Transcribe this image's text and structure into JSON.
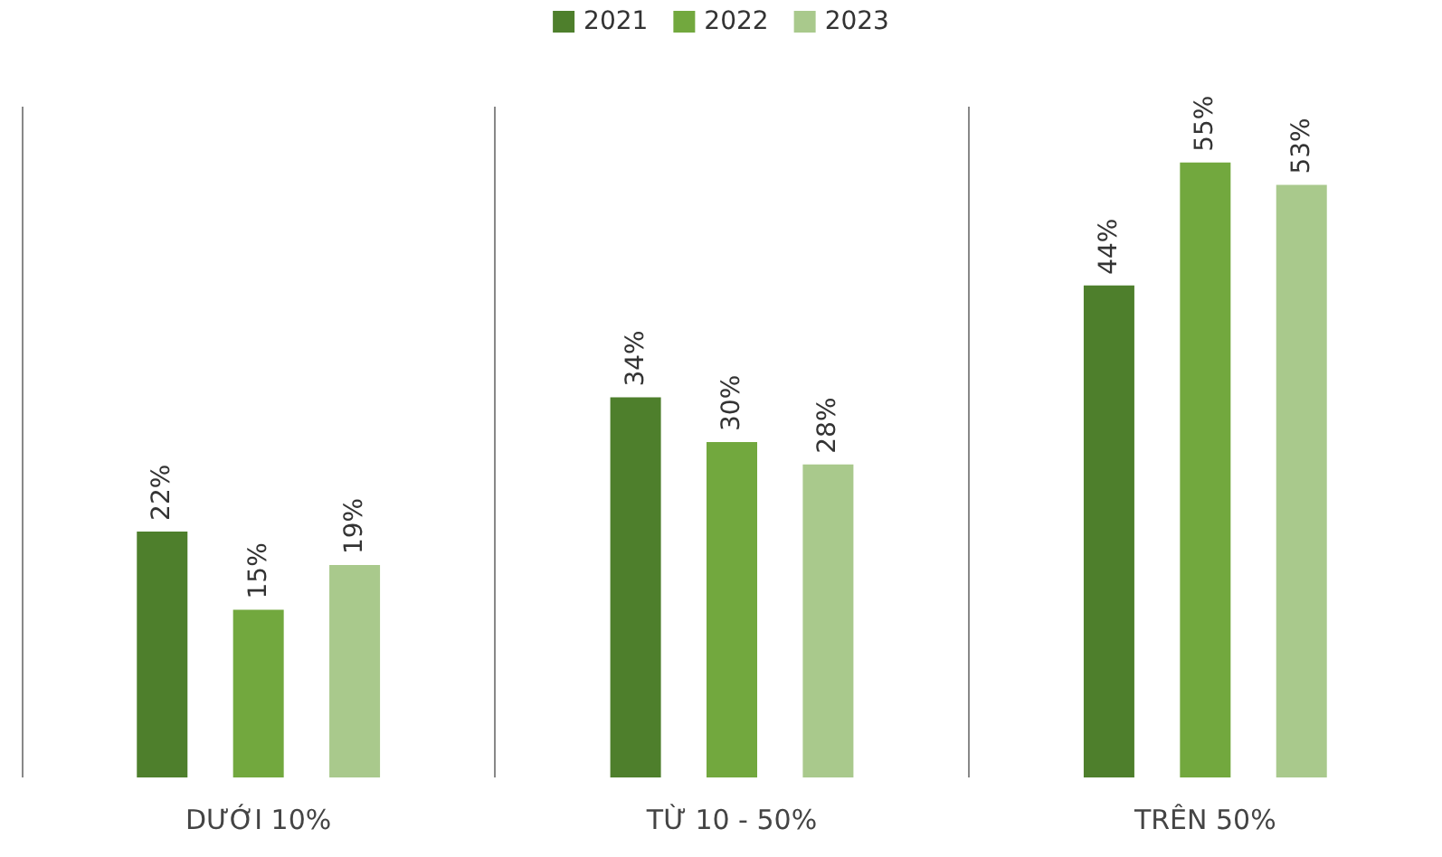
{
  "chart_data": {
    "type": "bar",
    "categories": [
      "DƯỚI 10%",
      "TỪ 10 - 50%",
      "TRÊN 50%"
    ],
    "series": [
      {
        "name": "2021",
        "color": "#4e7f2c",
        "values": [
          22,
          34,
          44
        ],
        "value_labels": [
          "22%",
          "34%",
          "44%"
        ]
      },
      {
        "name": "2022",
        "color": "#72a83e",
        "values": [
          15,
          30,
          55
        ],
        "value_labels": [
          "15%",
          "30%",
          "55%"
        ]
      },
      {
        "name": "2023",
        "color": "#a9c98c",
        "values": [
          19,
          28,
          53
        ],
        "value_labels": [
          "19%",
          "28%",
          "53%"
        ]
      }
    ],
    "grid": "x",
    "legend": "top",
    "tick_labels": "x"
  }
}
